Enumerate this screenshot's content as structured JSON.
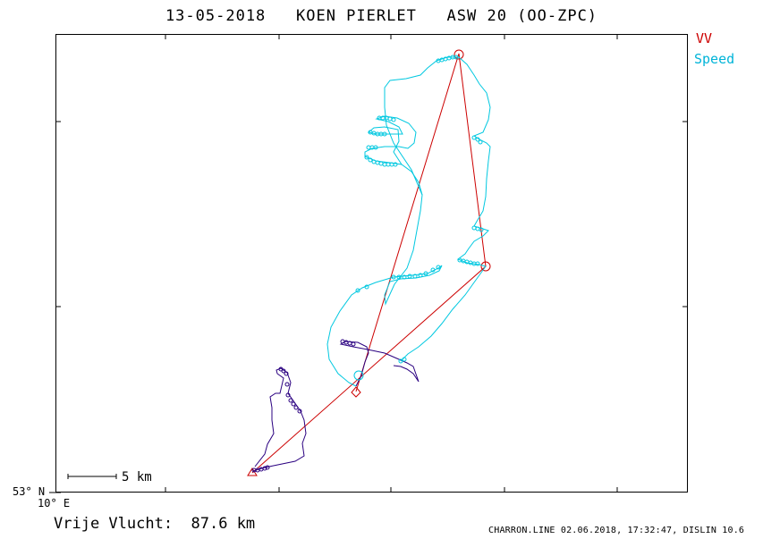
{
  "title": "13-05-2018   KOEN PIERLET   ASW 20 (OO-ZPC)",
  "legend": {
    "items": [
      {
        "label": "VV",
        "color": "#cc0000"
      },
      {
        "label": "Speed",
        "color": "#00b4d8"
      }
    ]
  },
  "axes": {
    "lat_label": "53° N",
    "lon_label": "10° E"
  },
  "scale_bar": {
    "label": "5 km",
    "km": 5
  },
  "distance_text": "Vrije Vlucht:  87.6 km",
  "footer_text": "CHARRON.LINE 02.06.2018, 17:32:47, DISLIN 10.6",
  "colors": {
    "task": "#cc0000",
    "track_fast": "#00c8e0",
    "track_slow": "#2a0080",
    "frame": "#000000"
  }
}
